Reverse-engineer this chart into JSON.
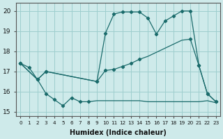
{
  "xlabel": "Humidex (Indice chaleur)",
  "xlim": [
    -0.5,
    23.5
  ],
  "ylim": [
    14.8,
    20.4
  ],
  "yticks": [
    15,
    16,
    17,
    18,
    19,
    20
  ],
  "xticks": [
    0,
    1,
    2,
    3,
    4,
    5,
    6,
    7,
    8,
    9,
    10,
    11,
    12,
    13,
    14,
    15,
    16,
    17,
    18,
    19,
    20,
    21,
    22,
    23
  ],
  "bg_color": "#ceeaea",
  "grid_color": "#9ecece",
  "line_color": "#1a6b6b",
  "line1_x": [
    0,
    1,
    2,
    3,
    4,
    5,
    6,
    7,
    8,
    9,
    10,
    11,
    12,
    13,
    14,
    15,
    16,
    17,
    18,
    19,
    20,
    21,
    22,
    23
  ],
  "line1_y": [
    17.4,
    17.2,
    16.6,
    15.9,
    15.6,
    15.3,
    15.7,
    15.5,
    15.5,
    15.55,
    15.55,
    15.55,
    15.55,
    15.55,
    15.55,
    15.5,
    15.5,
    15.5,
    15.5,
    15.5,
    15.5,
    15.5,
    15.55,
    15.45
  ],
  "line1_markers_x": [
    0,
    1,
    2,
    3,
    4,
    5,
    6,
    7,
    8
  ],
  "line1_markers_y": [
    17.4,
    17.2,
    16.6,
    15.9,
    15.6,
    15.3,
    15.7,
    15.5,
    15.5
  ],
  "line2_x": [
    0,
    2,
    3,
    9,
    10,
    11,
    12,
    13,
    14,
    15,
    16,
    17,
    18,
    19,
    20,
    21,
    22,
    23
  ],
  "line2_y": [
    17.4,
    16.6,
    17.0,
    16.5,
    17.05,
    17.1,
    17.25,
    17.4,
    17.6,
    17.75,
    17.95,
    18.15,
    18.35,
    18.55,
    18.6,
    17.3,
    15.9,
    15.5
  ],
  "line2_markers_x": [
    0,
    2,
    3,
    9,
    10,
    11,
    12,
    13,
    14,
    20,
    21,
    22,
    23
  ],
  "line2_markers_y": [
    17.4,
    16.6,
    17.0,
    16.5,
    17.05,
    17.1,
    17.25,
    17.4,
    17.6,
    18.6,
    17.3,
    15.9,
    15.5
  ],
  "line3_x": [
    0,
    2,
    3,
    9,
    10,
    11,
    12,
    13,
    14,
    15,
    16,
    17,
    18,
    19,
    20,
    21,
    22,
    23
  ],
  "line3_y": [
    17.4,
    16.6,
    17.0,
    16.5,
    18.9,
    19.85,
    19.95,
    19.95,
    19.95,
    19.65,
    18.85,
    19.5,
    19.75,
    20.0,
    20.0,
    17.3,
    15.9,
    15.5
  ],
  "line3_markers_x": [
    0,
    2,
    3,
    9,
    10,
    11,
    12,
    13,
    14,
    15,
    16,
    17,
    18,
    19,
    20,
    21,
    22,
    23
  ],
  "line3_markers_y": [
    17.4,
    16.6,
    17.0,
    16.5,
    18.9,
    19.85,
    19.95,
    19.95,
    19.95,
    19.65,
    18.85,
    19.5,
    19.75,
    20.0,
    20.0,
    17.3,
    15.9,
    15.5
  ]
}
